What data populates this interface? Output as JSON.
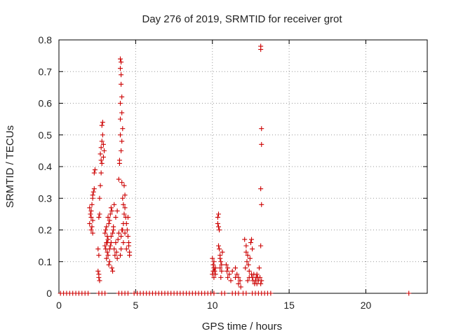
{
  "chart_data": {
    "type": "scatter",
    "title": "Day 276 of 2019, SRMTID for receiver grot",
    "xlabel": "GPS time / hours",
    "ylabel": "SRMTID / TECUs",
    "xlim": [
      0,
      24
    ],
    "ylim": [
      0,
      0.8
    ],
    "grid": true,
    "marker": "+",
    "color": "#cc0000",
    "x_ticks": [
      {
        "value": 0,
        "label": "0"
      },
      {
        "value": 5,
        "label": "5"
      },
      {
        "value": 10,
        "label": "10"
      },
      {
        "value": 15,
        "label": "15"
      },
      {
        "value": 20,
        "label": "20"
      }
    ],
    "y_ticks": [
      {
        "value": 0,
        "label": "0"
      },
      {
        "value": 0.1,
        "label": "0.1"
      },
      {
        "value": 0.2,
        "label": "0.2"
      },
      {
        "value": 0.3,
        "label": "0.3"
      },
      {
        "value": 0.4,
        "label": "0.4"
      },
      {
        "value": 0.5,
        "label": "0.5"
      },
      {
        "value": 0.6,
        "label": "0.6"
      },
      {
        "value": 0.7,
        "label": "0.7"
      },
      {
        "value": 0.8,
        "label": "0.8"
      }
    ],
    "series": [
      {
        "name": "SRMTID",
        "points": [
          [
            0.1,
            0
          ],
          [
            0.3,
            0
          ],
          [
            0.5,
            0
          ],
          [
            0.7,
            0
          ],
          [
            0.9,
            0
          ],
          [
            1.1,
            0
          ],
          [
            1.3,
            0
          ],
          [
            1.5,
            0
          ],
          [
            1.7,
            0
          ],
          [
            1.9,
            0
          ],
          [
            2.6,
            0
          ],
          [
            2.8,
            0
          ],
          [
            3.0,
            0
          ],
          [
            3.9,
            0
          ],
          [
            4.1,
            0
          ],
          [
            4.3,
            0
          ],
          [
            4.5,
            0
          ],
          [
            4.9,
            0
          ],
          [
            5.1,
            0
          ],
          [
            5.3,
            0
          ],
          [
            5.5,
            0
          ],
          [
            5.7,
            0
          ],
          [
            5.9,
            0
          ],
          [
            6.1,
            0
          ],
          [
            6.3,
            0
          ],
          [
            6.5,
            0
          ],
          [
            6.7,
            0
          ],
          [
            6.9,
            0
          ],
          [
            7.1,
            0
          ],
          [
            7.3,
            0
          ],
          [
            7.5,
            0
          ],
          [
            7.7,
            0
          ],
          [
            7.9,
            0
          ],
          [
            8.1,
            0
          ],
          [
            8.3,
            0
          ],
          [
            8.5,
            0
          ],
          [
            8.7,
            0
          ],
          [
            8.9,
            0
          ],
          [
            9.1,
            0
          ],
          [
            9.3,
            0
          ],
          [
            9.5,
            0
          ],
          [
            9.7,
            0
          ],
          [
            9.9,
            0
          ],
          [
            10.1,
            0
          ],
          [
            10.6,
            0
          ],
          [
            10.8,
            0
          ],
          [
            11.3,
            0
          ],
          [
            11.5,
            0
          ],
          [
            11.7,
            0
          ],
          [
            12.0,
            0
          ],
          [
            12.2,
            0
          ],
          [
            12.6,
            0
          ],
          [
            12.8,
            0
          ],
          [
            13.0,
            0
          ],
          [
            13.2,
            0
          ],
          [
            13.4,
            0
          ],
          [
            13.6,
            0
          ],
          [
            13.8,
            0
          ],
          [
            22.8,
            0
          ],
          [
            2.0,
            0.27
          ],
          [
            2.05,
            0.25
          ],
          [
            2.1,
            0.24
          ],
          [
            2.0,
            0.22
          ],
          [
            2.1,
            0.2
          ],
          [
            2.15,
            0.21
          ],
          [
            2.2,
            0.23
          ],
          [
            2.15,
            0.28
          ],
          [
            2.2,
            0.3
          ],
          [
            2.25,
            0.32
          ],
          [
            2.2,
            0.31
          ],
          [
            2.3,
            0.33
          ],
          [
            2.3,
            0.38
          ],
          [
            2.35,
            0.39
          ],
          [
            2.2,
            0.19
          ],
          [
            2.1,
            0.26
          ],
          [
            2.55,
            0.07
          ],
          [
            2.6,
            0.06
          ],
          [
            2.6,
            0.05
          ],
          [
            2.65,
            0.04
          ],
          [
            2.55,
            0.14
          ],
          [
            2.6,
            0.12
          ],
          [
            2.65,
            0.25
          ],
          [
            2.6,
            0.24
          ],
          [
            2.65,
            0.3
          ],
          [
            2.7,
            0.34
          ],
          [
            2.75,
            0.38
          ],
          [
            2.7,
            0.44
          ],
          [
            2.75,
            0.46
          ],
          [
            2.8,
            0.48
          ],
          [
            2.85,
            0.5
          ],
          [
            2.8,
            0.53
          ],
          [
            2.85,
            0.54
          ],
          [
            2.9,
            0.47
          ],
          [
            2.9,
            0.43
          ],
          [
            2.8,
            0.41
          ],
          [
            2.95,
            0.45
          ],
          [
            2.75,
            0.42
          ],
          [
            3.0,
            0.15
          ],
          [
            3.05,
            0.14
          ],
          [
            3.1,
            0.16
          ],
          [
            3.15,
            0.18
          ],
          [
            3.2,
            0.17
          ],
          [
            3.0,
            0.19
          ],
          [
            3.05,
            0.2
          ],
          [
            3.1,
            0.21
          ],
          [
            3.15,
            0.13
          ],
          [
            3.2,
            0.12
          ],
          [
            3.1,
            0.11
          ],
          [
            3.25,
            0.22
          ],
          [
            3.3,
            0.23
          ],
          [
            3.35,
            0.15
          ],
          [
            3.4,
            0.16
          ],
          [
            3.3,
            0.1
          ],
          [
            3.25,
            0.09
          ],
          [
            3.35,
            0.25
          ],
          [
            3.4,
            0.27
          ],
          [
            3.45,
            0.26
          ],
          [
            3.5,
            0.19
          ],
          [
            3.55,
            0.21
          ],
          [
            3.45,
            0.08
          ],
          [
            3.5,
            0.07
          ],
          [
            3.6,
            0.14
          ],
          [
            3.65,
            0.12
          ],
          [
            3.7,
            0.24
          ],
          [
            3.6,
            0.28
          ],
          [
            3.55,
            0.2
          ],
          [
            3.7,
            0.16
          ],
          [
            3.75,
            0.13
          ],
          [
            3.8,
            0.11
          ],
          [
            3.85,
            0.17
          ],
          [
            3.9,
            0.19
          ],
          [
            3.8,
            0.26
          ],
          [
            3.2,
            0.24
          ],
          [
            3.4,
            0.18
          ],
          [
            3.15,
            0.16
          ],
          [
            3.3,
            0.14
          ],
          [
            3.9,
            0.36
          ],
          [
            3.95,
            0.42
          ],
          [
            4.0,
            0.5
          ],
          [
            4.0,
            0.55
          ],
          [
            4.0,
            0.6
          ],
          [
            4.05,
            0.66
          ],
          [
            4.05,
            0.69
          ],
          [
            4.0,
            0.71
          ],
          [
            4.05,
            0.73
          ],
          [
            4.0,
            0.74
          ],
          [
            4.1,
            0.57
          ],
          [
            4.1,
            0.62
          ],
          [
            4.15,
            0.52
          ],
          [
            4.1,
            0.48
          ],
          [
            3.95,
            0.41
          ],
          [
            4.05,
            0.45
          ],
          [
            4.1,
            0.35
          ],
          [
            4.15,
            0.3
          ],
          [
            4.2,
            0.28
          ],
          [
            4.25,
            0.25
          ],
          [
            4.2,
            0.22
          ],
          [
            4.15,
            0.2
          ],
          [
            4.25,
            0.34
          ],
          [
            4.3,
            0.31
          ],
          [
            4.3,
            0.27
          ],
          [
            4.35,
            0.24
          ],
          [
            4.1,
            0.2
          ],
          [
            4.2,
            0.16
          ],
          [
            4.05,
            0.18
          ],
          [
            4.3,
            0.19
          ],
          [
            4.4,
            0.22
          ],
          [
            4.45,
            0.2
          ],
          [
            4.5,
            0.18
          ],
          [
            4.55,
            0.15
          ],
          [
            4.6,
            0.13
          ],
          [
            4.6,
            0.12
          ],
          [
            4.55,
            0.16
          ],
          [
            4.5,
            0.24
          ],
          [
            4.0,
            0.12
          ],
          [
            4.05,
            0.14
          ],
          [
            4.4,
            0.14
          ],
          [
            10.0,
            0.06
          ],
          [
            10.05,
            0.07
          ],
          [
            10.1,
            0.08
          ],
          [
            10.05,
            0.09
          ],
          [
            10.1,
            0.1
          ],
          [
            10.0,
            0.11
          ],
          [
            10.15,
            0.07
          ],
          [
            10.2,
            0.06
          ],
          [
            10.1,
            0.05
          ],
          [
            10.2,
            0.08
          ],
          [
            10.35,
            0.24
          ],
          [
            10.4,
            0.25
          ],
          [
            10.35,
            0.22
          ],
          [
            10.45,
            0.2
          ],
          [
            10.4,
            0.21
          ],
          [
            10.4,
            0.15
          ],
          [
            10.45,
            0.14
          ],
          [
            10.5,
            0.12
          ],
          [
            10.5,
            0.11
          ],
          [
            10.55,
            0.1
          ],
          [
            10.6,
            0.09
          ],
          [
            10.5,
            0.08
          ],
          [
            10.6,
            0.07
          ],
          [
            10.65,
            0.13
          ],
          [
            10.55,
            0.05
          ],
          [
            10.9,
            0.09
          ],
          [
            11.0,
            0.08
          ],
          [
            11.1,
            0.06
          ],
          [
            11.0,
            0.05
          ],
          [
            10.95,
            0.07
          ],
          [
            11.2,
            0.04
          ],
          [
            11.3,
            0.07
          ],
          [
            11.5,
            0.08
          ],
          [
            11.6,
            0.06
          ],
          [
            11.7,
            0.05
          ],
          [
            11.8,
            0.04
          ],
          [
            11.7,
            0.03
          ],
          [
            11.85,
            0.02
          ],
          [
            11.5,
            0.05
          ],
          [
            12.1,
            0.17
          ],
          [
            12.2,
            0.15
          ],
          [
            12.2,
            0.13
          ],
          [
            12.25,
            0.1
          ],
          [
            12.3,
            0.12
          ],
          [
            12.15,
            0.08
          ],
          [
            12.35,
            0.09
          ],
          [
            12.4,
            0.07
          ],
          [
            12.45,
            0.11
          ],
          [
            12.5,
            0.16
          ],
          [
            12.55,
            0.17
          ],
          [
            12.6,
            0.14
          ],
          [
            12.55,
            0.06
          ],
          [
            12.6,
            0.05
          ],
          [
            12.65,
            0.04
          ],
          [
            12.7,
            0.06
          ],
          [
            12.75,
            0.03
          ],
          [
            12.8,
            0.04
          ],
          [
            12.85,
            0.05
          ],
          [
            12.9,
            0.06
          ],
          [
            12.9,
            0.03
          ],
          [
            12.95,
            0.05
          ],
          [
            13.0,
            0.04
          ],
          [
            13.05,
            0.08
          ],
          [
            13.1,
            0.05
          ],
          [
            13.15,
            0.03
          ],
          [
            13.2,
            0.04
          ],
          [
            12.3,
            0.04
          ],
          [
            12.4,
            0.05
          ],
          [
            13.15,
            0.78
          ],
          [
            13.15,
            0.77
          ],
          [
            13.2,
            0.52
          ],
          [
            13.2,
            0.47
          ],
          [
            13.15,
            0.33
          ],
          [
            13.2,
            0.28
          ],
          [
            13.15,
            0.15
          ]
        ]
      }
    ]
  }
}
